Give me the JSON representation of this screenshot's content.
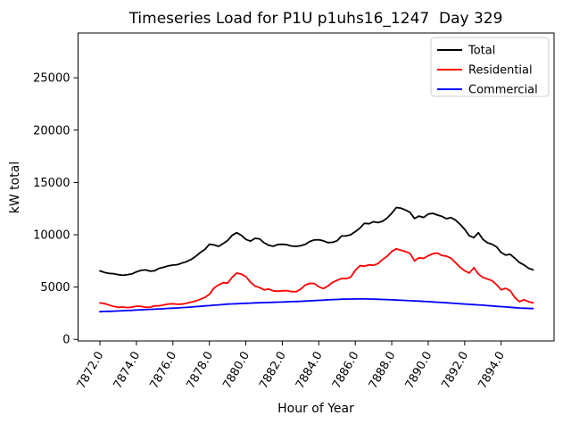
{
  "title": "Timeseries Load for P1U p1uhs16_1247  Day 329",
  "axes": {
    "xlabel": "Hour of Year",
    "ylabel": "kW total",
    "x_ticks": [
      "7872.0",
      "7874.0",
      "7876.0",
      "7878.0",
      "7880.0",
      "7882.0",
      "7884.0",
      "7886.0",
      "7888.0",
      "7890.0",
      "7892.0",
      "7894.0"
    ],
    "y_ticks": [
      "0",
      "5000",
      "10000",
      "15000",
      "20000",
      "25000"
    ]
  },
  "legend": {
    "entries": [
      {
        "label": "Total",
        "color": "#000000"
      },
      {
        "label": "Residential",
        "color": "#ff0000"
      },
      {
        "label": "Commercial",
        "color": "#0000ff"
      }
    ]
  },
  "chart_data": {
    "type": "line",
    "title": "Timeseries Load for P1U p1uhs16_1247  Day 329",
    "xlabel": "Hour of Year",
    "ylabel": "kW total",
    "xlim": [
      7870.8,
      7896.9
    ],
    "ylim": [
      -150,
      29280
    ],
    "grid": false,
    "legend_position": "upper right",
    "x": [
      7872,
      7872.25,
      7872.5,
      7872.75,
      7873,
      7873.25,
      7873.5,
      7873.75,
      7874,
      7874.25,
      7874.5,
      7874.75,
      7875,
      7875.25,
      7875.5,
      7875.75,
      7876,
      7876.25,
      7876.5,
      7876.75,
      7877,
      7877.25,
      7877.5,
      7877.75,
      7878,
      7878.25,
      7878.5,
      7878.75,
      7879,
      7879.25,
      7879.5,
      7879.75,
      7880,
      7880.25,
      7880.5,
      7880.75,
      7881,
      7881.25,
      7881.5,
      7881.75,
      7882,
      7882.25,
      7882.5,
      7882.75,
      7883,
      7883.25,
      7883.5,
      7883.75,
      7884,
      7884.25,
      7884.5,
      7884.75,
      7885,
      7885.25,
      7885.5,
      7885.75,
      7886,
      7886.25,
      7886.5,
      7886.75,
      7887,
      7887.25,
      7887.5,
      7887.75,
      7888,
      7888.25,
      7888.5,
      7888.75,
      7889,
      7889.25,
      7889.5,
      7889.75,
      7890,
      7890.25,
      7890.5,
      7890.75,
      7891,
      7891.25,
      7891.5,
      7891.75,
      7892,
      7892.25,
      7892.5,
      7892.75,
      7893,
      7893.25,
      7893.5,
      7893.75,
      7894,
      7894.25,
      7894.5,
      7894.75,
      7895,
      7895.25,
      7895.5,
      7895.75
    ],
    "series": [
      {
        "name": "Total",
        "color": "#000000",
        "values": [
          6550,
          6400,
          6310,
          6280,
          6190,
          6130,
          6180,
          6260,
          6450,
          6600,
          6640,
          6520,
          6560,
          6790,
          6900,
          7030,
          7100,
          7140,
          7300,
          7430,
          7640,
          7940,
          8300,
          8590,
          9100,
          9030,
          8890,
          9150,
          9450,
          9940,
          10200,
          9950,
          9560,
          9390,
          9660,
          9610,
          9230,
          9000,
          8900,
          9060,
          9090,
          9050,
          8930,
          8890,
          8950,
          9070,
          9350,
          9500,
          9520,
          9420,
          9250,
          9280,
          9420,
          9880,
          9890,
          10000,
          10300,
          10620,
          11090,
          11050,
          11250,
          11160,
          11290,
          11600,
          12060,
          12600,
          12540,
          12360,
          12150,
          11550,
          11780,
          11660,
          11980,
          12050,
          11890,
          11760,
          11540,
          11640,
          11400,
          11000,
          10520,
          9900,
          9730,
          10200,
          9560,
          9230,
          9100,
          8840,
          8300,
          8060,
          8130,
          7750,
          7350,
          7120,
          6800,
          6650
        ]
      },
      {
        "name": "Residential",
        "color": "#ff0000",
        "values": [
          3480,
          3420,
          3290,
          3150,
          3070,
          3090,
          3040,
          3080,
          3180,
          3160,
          3070,
          3080,
          3200,
          3210,
          3300,
          3380,
          3410,
          3360,
          3370,
          3460,
          3560,
          3660,
          3830,
          4010,
          4300,
          4900,
          5200,
          5420,
          5380,
          5930,
          6340,
          6240,
          6000,
          5480,
          5100,
          4950,
          4740,
          4810,
          4640,
          4600,
          4640,
          4660,
          4570,
          4560,
          4790,
          5180,
          5350,
          5340,
          5030,
          4860,
          5100,
          5440,
          5640,
          5820,
          5800,
          5950,
          6600,
          7040,
          7000,
          7120,
          7080,
          7250,
          7640,
          7950,
          8400,
          8660,
          8520,
          8400,
          8230,
          7500,
          7800,
          7740,
          8000,
          8180,
          8250,
          8020,
          7950,
          7760,
          7330,
          6890,
          6560,
          6340,
          6850,
          6250,
          5920,
          5760,
          5620,
          5220,
          4740,
          4880,
          4650,
          4000,
          3600,
          3790,
          3610,
          3480
        ]
      },
      {
        "name": "Commercial",
        "color": "#0000ff",
        "values": [
          2650,
          2670,
          2680,
          2700,
          2720,
          2740,
          2760,
          2780,
          2800,
          2820,
          2840,
          2870,
          2890,
          2910,
          2930,
          2960,
          2980,
          3010,
          3040,
          3060,
          3090,
          3130,
          3160,
          3200,
          3230,
          3270,
          3300,
          3340,
          3370,
          3390,
          3410,
          3430,
          3450,
          3470,
          3490,
          3500,
          3520,
          3530,
          3540,
          3560,
          3570,
          3590,
          3610,
          3620,
          3640,
          3660,
          3690,
          3710,
          3730,
          3750,
          3780,
          3800,
          3820,
          3840,
          3850,
          3860,
          3860,
          3870,
          3870,
          3860,
          3850,
          3830,
          3820,
          3800,
          3780,
          3760,
          3740,
          3720,
          3700,
          3680,
          3660,
          3630,
          3610,
          3580,
          3550,
          3530,
          3500,
          3470,
          3440,
          3410,
          3380,
          3350,
          3320,
          3300,
          3270,
          3230,
          3200,
          3160,
          3130,
          3100,
          3070,
          3030,
          3000,
          2980,
          2960,
          2950
        ]
      }
    ]
  }
}
